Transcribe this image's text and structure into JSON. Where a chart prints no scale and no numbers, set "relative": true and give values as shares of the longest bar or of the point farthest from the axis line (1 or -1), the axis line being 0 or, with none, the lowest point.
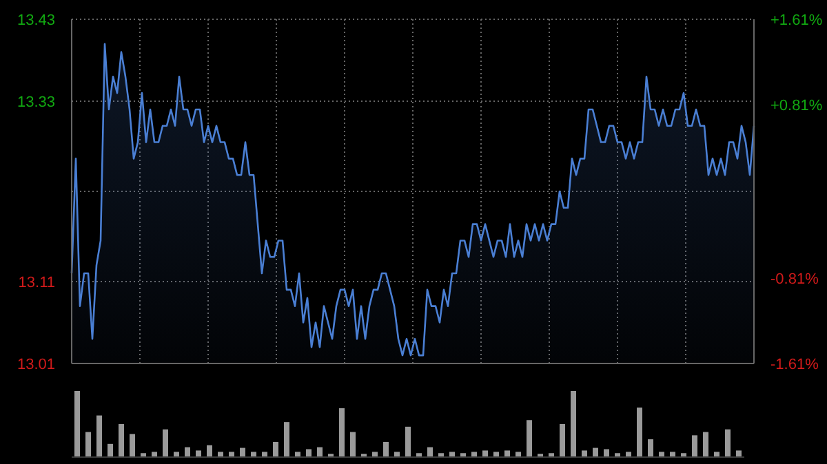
{
  "chart_data": [
    {
      "type": "area",
      "categories": [
        null,
        null,
        null,
        null,
        null,
        null,
        null,
        null,
        null,
        null,
        null,
        null,
        null,
        null,
        null,
        null,
        null,
        null,
        null,
        null,
        null,
        null,
        null,
        null,
        null,
        null,
        null,
        null,
        null,
        null,
        null,
        null,
        null,
        null,
        null,
        null,
        null,
        null,
        null,
        null,
        null,
        null,
        null,
        null,
        null,
        null,
        null,
        null,
        null,
        null,
        null,
        null,
        null,
        null,
        null,
        null,
        null,
        null,
        null,
        null,
        null,
        null,
        null,
        null,
        null,
        null,
        null,
        null,
        null,
        null,
        null,
        null,
        null,
        null,
        null,
        null,
        null,
        null,
        null,
        null,
        null,
        null,
        null,
        null,
        null,
        null,
        null,
        null,
        null,
        null,
        null,
        null,
        null,
        null,
        null,
        null,
        null,
        null,
        null,
        null,
        null,
        null,
        null,
        null,
        null,
        null,
        null,
        null,
        null,
        null,
        null,
        null,
        null,
        null,
        null,
        null,
        null,
        null,
        null,
        null,
        null,
        null,
        null,
        null,
        null,
        null,
        null,
        null,
        null,
        null,
        null,
        null,
        null,
        null,
        null,
        null,
        null,
        null,
        null,
        null,
        null,
        null,
        null,
        null,
        null,
        null,
        null,
        null,
        null,
        null,
        null,
        null,
        null,
        null,
        null,
        null,
        null,
        null,
        null,
        null,
        null,
        null,
        null,
        null,
        null,
        null
      ],
      "series": [
        {
          "color": "#4a7fd4",
          "values": [
            13.12,
            13.26,
            13.08,
            13.12,
            13.12,
            13.04,
            13.13,
            13.16,
            13.4,
            13.32,
            13.36,
            13.34,
            13.39,
            13.36,
            13.32,
            13.26,
            13.28,
            13.34,
            13.28,
            13.32,
            13.28,
            13.28,
            13.3,
            13.3,
            13.32,
            13.3,
            13.36,
            13.32,
            13.32,
            13.3,
            13.32,
            13.32,
            13.28,
            13.3,
            13.28,
            13.3,
            13.28,
            13.28,
            13.26,
            13.26,
            13.24,
            13.24,
            13.28,
            13.24,
            13.24,
            13.18,
            13.12,
            13.16,
            13.14,
            13.14,
            13.16,
            13.16,
            13.1,
            13.1,
            13.08,
            13.12,
            13.06,
            13.09,
            13.03,
            13.06,
            13.03,
            13.08,
            13.06,
            13.04,
            13.08,
            13.1,
            13.1,
            13.08,
            13.1,
            13.04,
            13.08,
            13.04,
            13.08,
            13.1,
            13.1,
            13.12,
            13.12,
            13.1,
            13.08,
            13.04,
            13.02,
            13.04,
            13.02,
            13.04,
            13.02,
            13.02,
            13.1,
            13.08,
            13.08,
            13.06,
            13.1,
            13.08,
            13.12,
            13.12,
            13.16,
            13.16,
            13.14,
            13.18,
            13.18,
            13.16,
            13.18,
            13.16,
            13.14,
            13.16,
            13.16,
            13.14,
            13.18,
            13.14,
            13.16,
            13.14,
            13.18,
            13.16,
            13.18,
            13.16,
            13.18,
            13.16,
            13.18,
            13.18,
            13.22,
            13.2,
            13.2,
            13.26,
            13.24,
            13.26,
            13.26,
            13.32,
            13.32,
            13.3,
            13.28,
            13.28,
            13.3,
            13.3,
            13.28,
            13.28,
            13.26,
            13.28,
            13.26,
            13.28,
            13.28,
            13.36,
            13.32,
            13.32,
            13.3,
            13.32,
            13.3,
            13.3,
            13.32,
            13.32,
            13.34,
            13.3,
            13.3,
            13.32,
            13.3,
            13.3,
            13.24,
            13.26,
            13.24,
            13.26,
            13.24,
            13.28,
            13.28,
            13.26,
            13.3,
            13.28,
            13.24,
            13.3
          ]
        }
      ],
      "ylim": [
        13.01,
        13.43
      ],
      "yticks": [
        13.01,
        13.11,
        {
          "value": 13.22,
          "label": null
        },
        13.33,
        13.43
      ],
      "y2lim": [
        -1.61,
        1.61
      ],
      "y2ticks": [
        {
          "value": -1.61,
          "label": "-1.61%"
        },
        {
          "value": -0.81,
          "label": "-0.81%"
        },
        {
          "value": 0.81,
          "label": "+0.81%"
        },
        {
          "value": 1.61,
          "label": "+1.61%"
        }
      ],
      "tick_labels": "y",
      "grid": true,
      "legend": false
    },
    {
      "type": "bar",
      "relative": true,
      "color": "#9a9a9a",
      "categories": [
        null,
        null,
        null,
        null,
        null,
        null,
        null,
        null,
        null,
        null,
        null,
        null,
        null,
        null,
        null,
        null,
        null,
        null,
        null,
        null,
        null,
        null,
        null,
        null,
        null,
        null,
        null,
        null,
        null,
        null,
        null,
        null,
        null,
        null,
        null,
        null,
        null,
        null,
        null,
        null,
        null,
        null,
        null,
        null,
        null,
        null,
        null,
        null,
        null,
        null,
        null,
        null,
        null,
        null,
        null,
        null,
        null,
        null,
        null,
        null,
        null
      ],
      "values": [
        1.0,
        0.38,
        0.63,
        0.2,
        0.5,
        0.35,
        0.06,
        0.08,
        0.42,
        0.08,
        0.15,
        0.1,
        0.18,
        0.08,
        0.08,
        0.14,
        0.08,
        0.08,
        0.23,
        0.53,
        0.08,
        0.12,
        0.15,
        0.05,
        0.74,
        0.38,
        0.05,
        0.08,
        0.23,
        0.08,
        0.46,
        0.06,
        0.15,
        0.06,
        0.08,
        0.06,
        0.08,
        0.1,
        0.08,
        0.1,
        0.08,
        0.56,
        0.05,
        0.06,
        0.5,
        1.0,
        0.1,
        0.14,
        0.12,
        0.06,
        0.08,
        0.75,
        0.27,
        0.08,
        0.08,
        0.06,
        0.33,
        0.38,
        0.08,
        0.42,
        0.1
      ],
      "legend": false
    }
  ]
}
